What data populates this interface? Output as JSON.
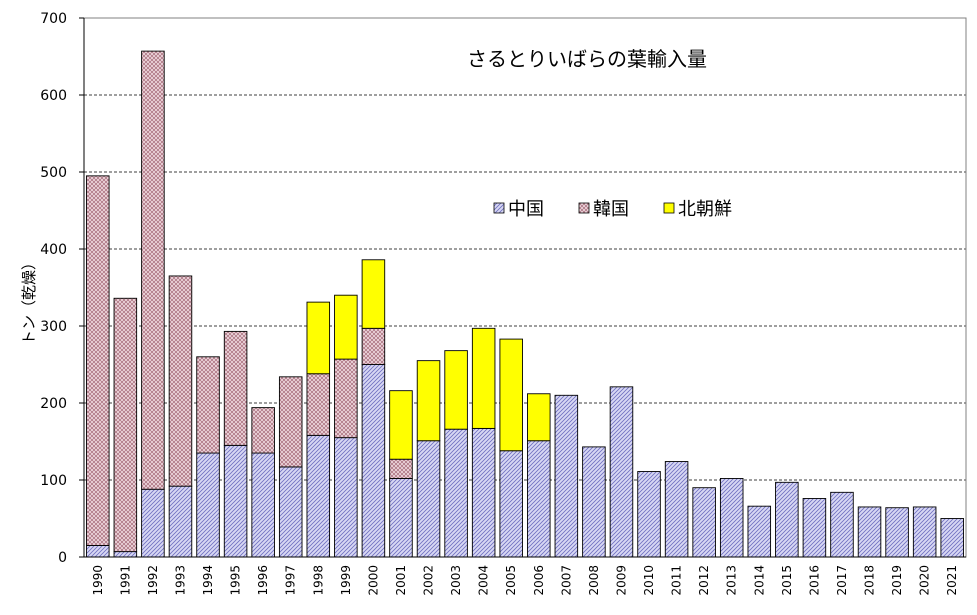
{
  "chart_data": {
    "type": "bar",
    "stacked": true,
    "title": "さるとりいばらの葉輸入量",
    "ylabel": "トン（乾燥）",
    "xlabel": "",
    "ylim": [
      0,
      700
    ],
    "yticks": [
      0,
      100,
      200,
      300,
      400,
      500,
      600,
      700
    ],
    "grid": true,
    "legend_position": "center",
    "categories": [
      "1990",
      "1991",
      "1992",
      "1993",
      "1994",
      "1995",
      "1996",
      "1997",
      "1998",
      "1999",
      "2000",
      "2001",
      "2002",
      "2003",
      "2004",
      "2005",
      "2006",
      "2007",
      "2008",
      "2009",
      "2010",
      "2011",
      "2012",
      "2013",
      "2014",
      "2015",
      "2016",
      "2017",
      "2018",
      "2019",
      "2020",
      "2021"
    ],
    "series": [
      {
        "name": "中国",
        "color": "#c0c0e8",
        "values": [
          15,
          7,
          88,
          92,
          135,
          145,
          135,
          117,
          158,
          155,
          250,
          102,
          151,
          166,
          167,
          138,
          151,
          210,
          143,
          221,
          111,
          124,
          90,
          102,
          66,
          97,
          76,
          84,
          65,
          64,
          65,
          50
        ]
      },
      {
        "name": "韓国",
        "color": "#e8c8d0",
        "values": [
          480,
          329,
          569,
          273,
          125,
          148,
          59,
          117,
          80,
          102,
          47,
          25,
          0,
          0,
          0,
          0,
          0,
          0,
          0,
          0,
          0,
          0,
          0,
          0,
          0,
          0,
          0,
          0,
          0,
          0,
          0,
          0
        ]
      },
      {
        "name": "北朝鮮",
        "color": "#ffff00",
        "values": [
          0,
          0,
          0,
          0,
          0,
          0,
          0,
          0,
          93,
          83,
          89,
          89,
          104,
          102,
          130,
          145,
          61,
          0,
          0,
          0,
          0,
          0,
          0,
          0,
          0,
          0,
          0,
          0,
          0,
          0,
          0,
          0
        ]
      }
    ]
  }
}
